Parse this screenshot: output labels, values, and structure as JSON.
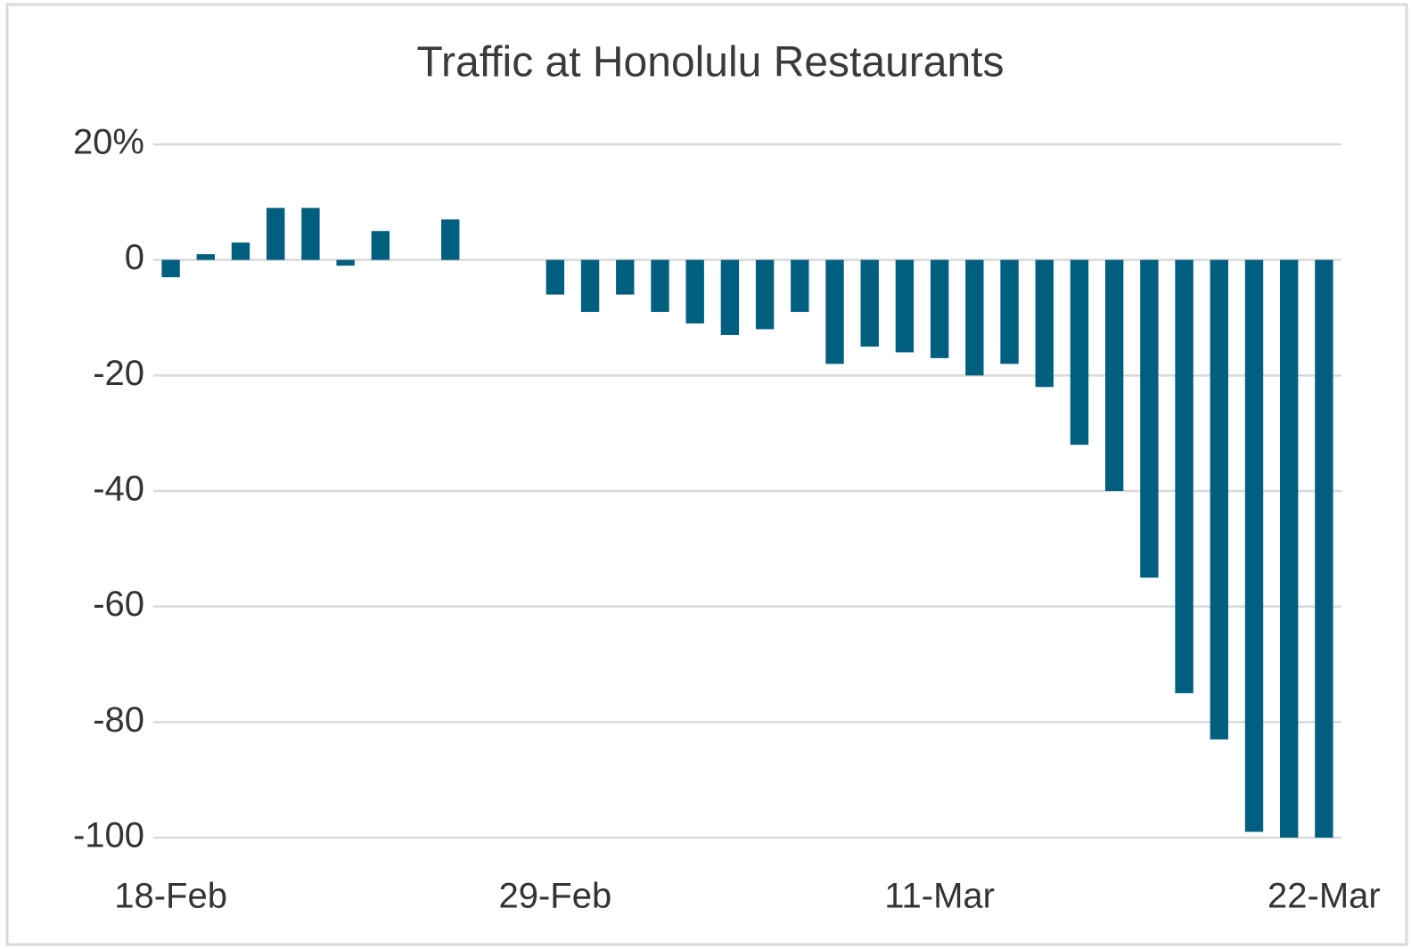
{
  "chart_data": {
    "type": "bar",
    "title": "Traffic at Honolulu Restaurants",
    "categories": [
      "18-Feb",
      null,
      null,
      null,
      null,
      null,
      null,
      null,
      null,
      null,
      null,
      "29-Feb",
      null,
      null,
      null,
      null,
      null,
      null,
      null,
      null,
      null,
      null,
      "11-Mar",
      null,
      null,
      null,
      null,
      null,
      null,
      null,
      null,
      null,
      null,
      "22-Mar"
    ],
    "values": [
      -3,
      1,
      3,
      9,
      9,
      -1,
      5,
      null,
      7,
      null,
      null,
      -6,
      -9,
      -6,
      -9,
      -11,
      -13,
      -12,
      -9,
      -18,
      -15,
      -16,
      -17,
      -20,
      -18,
      -22,
      -32,
      -40,
      -55,
      -75,
      -83,
      -99,
      -100,
      -100
    ],
    "color": "#005f7f",
    "ylim": [
      -100,
      20
    ],
    "yticks": [
      {
        "value": 20,
        "label": "20%"
      },
      0,
      -20,
      -40,
      -60,
      -80,
      -100
    ],
    "grid": true
  }
}
